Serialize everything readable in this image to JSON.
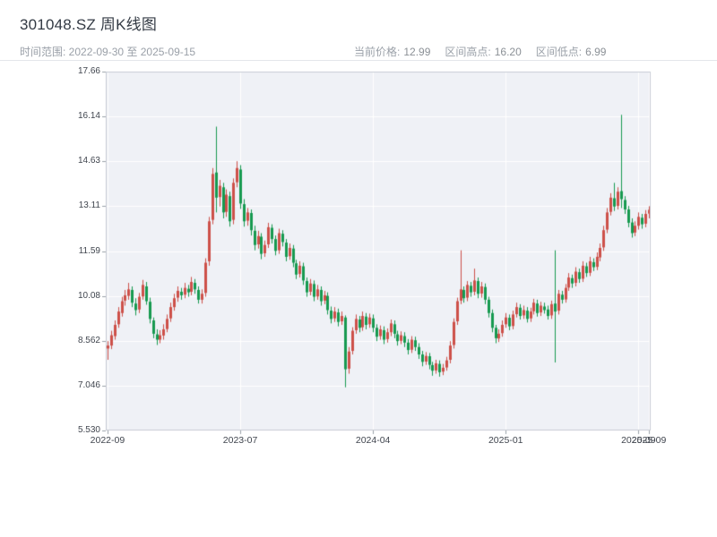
{
  "header": {
    "title": "301048.SZ 周K线图",
    "date_range_label": "时间范围: 2022-09-30 至 2025-09-15",
    "stats": {
      "current_label": "当前价格:",
      "current_value": "12.99",
      "high_label": "区间高点:",
      "high_value": "16.20",
      "low_label": "区间低点:",
      "low_value": "6.99"
    }
  },
  "chart_data": {
    "type": "candlestick",
    "title": "301048.SZ 周K线图",
    "timeframe": "weekly",
    "start_date": "2022-09-30",
    "end_date": "2025-09-15",
    "current_price": 12.99,
    "range_high": 16.2,
    "range_low": 6.99,
    "ylim": [
      5.53,
      17.66
    ],
    "y_ticks": [
      "17.66",
      "16.14",
      "14.63",
      "13.11",
      "11.59",
      "10.08",
      "8.562",
      "7.046",
      "5.530"
    ],
    "x_ticks": [
      {
        "label": "2022-09",
        "week": 0
      },
      {
        "label": "2023-07",
        "week": 38
      },
      {
        "label": "2024-04",
        "week": 76
      },
      {
        "label": "2025-01",
        "week": 114
      },
      {
        "label": "2025-09",
        "week": 152
      },
      {
        "label": "2025-09",
        "week": 155
      }
    ],
    "colors": {
      "up": "#cd5049",
      "down": "#169a50",
      "plot_bg": "#eff1f6",
      "grid": "#ffffff",
      "border": "#c7cbd4",
      "tick": "#9aa0a8"
    },
    "candles_ohlc": [
      [
        8.3,
        8.55,
        7.92,
        8.4
      ],
      [
        8.4,
        8.9,
        8.28,
        8.75
      ],
      [
        8.72,
        9.25,
        8.6,
        9.1
      ],
      [
        9.12,
        9.7,
        9.0,
        9.55
      ],
      [
        9.5,
        10.05,
        9.38,
        9.9
      ],
      [
        9.92,
        10.28,
        9.75,
        10.1
      ],
      [
        10.08,
        10.52,
        9.95,
        10.3
      ],
      [
        10.28,
        10.4,
        9.7,
        9.85
      ],
      [
        9.82,
        10.0,
        9.42,
        9.6
      ],
      [
        9.62,
        10.18,
        9.5,
        10.05
      ],
      [
        10.06,
        10.62,
        9.95,
        10.45
      ],
      [
        10.4,
        10.55,
        9.78,
        9.9
      ],
      [
        9.88,
        10.02,
        9.15,
        9.3
      ],
      [
        9.25,
        9.35,
        8.65,
        8.8
      ],
      [
        8.78,
        8.95,
        8.42,
        8.6
      ],
      [
        8.6,
        8.92,
        8.48,
        8.75
      ],
      [
        8.74,
        9.12,
        8.6,
        8.95
      ],
      [
        8.96,
        9.45,
        8.85,
        9.3
      ],
      [
        9.32,
        9.85,
        9.2,
        9.7
      ],
      [
        9.7,
        10.15,
        9.58,
        10.0
      ],
      [
        10.02,
        10.4,
        9.88,
        10.25
      ],
      [
        10.22,
        10.35,
        9.95,
        10.1
      ],
      [
        10.12,
        10.52,
        10.0,
        10.35
      ],
      [
        10.32,
        10.45,
        10.05,
        10.2
      ],
      [
        10.22,
        10.72,
        10.1,
        10.55
      ],
      [
        10.52,
        10.65,
        10.15,
        10.3
      ],
      [
        10.28,
        10.4,
        9.82,
        9.95
      ],
      [
        9.95,
        10.3,
        9.82,
        10.15
      ],
      [
        10.18,
        11.35,
        10.05,
        11.2
      ],
      [
        11.25,
        12.75,
        11.1,
        12.6
      ],
      [
        12.65,
        14.4,
        12.5,
        14.2
      ],
      [
        14.25,
        15.8,
        12.9,
        13.4
      ],
      [
        13.42,
        14.0,
        13.1,
        13.8
      ],
      [
        13.75,
        13.9,
        12.7,
        12.9
      ],
      [
        12.92,
        13.68,
        12.75,
        13.5
      ],
      [
        13.45,
        13.6,
        12.42,
        12.6
      ],
      [
        12.65,
        14.05,
        12.5,
        13.9
      ],
      [
        13.92,
        14.63,
        13.75,
        14.4
      ],
      [
        14.35,
        14.5,
        13.02,
        13.2
      ],
      [
        13.18,
        13.35,
        12.42,
        12.6
      ],
      [
        12.62,
        13.05,
        12.45,
        12.9
      ],
      [
        12.88,
        13.0,
        12.12,
        12.3
      ],
      [
        12.28,
        12.45,
        11.62,
        11.8
      ],
      [
        11.82,
        12.28,
        11.68,
        12.1
      ],
      [
        12.08,
        12.2,
        11.32,
        11.5
      ],
      [
        11.52,
        11.95,
        11.4,
        11.8
      ],
      [
        11.82,
        12.55,
        11.7,
        12.4
      ],
      [
        12.38,
        12.5,
        11.85,
        12.0
      ],
      [
        12.0,
        12.12,
        11.45,
        11.6
      ],
      [
        11.62,
        12.35,
        11.5,
        12.2
      ],
      [
        12.18,
        12.3,
        11.75,
        11.9
      ],
      [
        11.88,
        12.0,
        11.25,
        11.4
      ],
      [
        11.42,
        11.85,
        11.3,
        11.7
      ],
      [
        11.68,
        11.8,
        11.05,
        11.2
      ],
      [
        11.18,
        11.3,
        10.65,
        10.8
      ],
      [
        10.82,
        11.25,
        10.7,
        11.1
      ],
      [
        11.08,
        11.2,
        10.45,
        10.6
      ],
      [
        10.58,
        10.7,
        10.05,
        10.2
      ],
      [
        10.22,
        10.65,
        10.1,
        10.5
      ],
      [
        10.48,
        10.6,
        9.9,
        10.05
      ],
      [
        10.06,
        10.45,
        9.95,
        10.3
      ],
      [
        10.28,
        10.4,
        9.75,
        9.9
      ],
      [
        9.92,
        10.25,
        9.8,
        10.1
      ],
      [
        10.08,
        10.2,
        9.45,
        9.6
      ],
      [
        9.58,
        9.72,
        9.15,
        9.3
      ],
      [
        9.32,
        9.7,
        9.2,
        9.55
      ],
      [
        9.52,
        9.65,
        9.05,
        9.2
      ],
      [
        9.22,
        9.55,
        9.1,
        9.4
      ],
      [
        9.35,
        9.42,
        6.99,
        7.6
      ],
      [
        7.62,
        8.35,
        7.45,
        8.2
      ],
      [
        8.22,
        9.02,
        8.1,
        8.9
      ],
      [
        8.92,
        9.45,
        8.8,
        9.3
      ],
      [
        9.28,
        9.4,
        8.85,
        9.0
      ],
      [
        9.02,
        9.55,
        8.9,
        9.4
      ],
      [
        9.38,
        9.5,
        8.95,
        9.1
      ],
      [
        9.12,
        9.48,
        9.0,
        9.35
      ],
      [
        9.32,
        9.45,
        8.85,
        9.0
      ],
      [
        9.0,
        9.12,
        8.55,
        8.7
      ],
      [
        8.72,
        9.08,
        8.6,
        8.95
      ],
      [
        8.92,
        9.05,
        8.45,
        8.6
      ],
      [
        8.62,
        8.98,
        8.5,
        8.85
      ],
      [
        8.85,
        9.28,
        8.72,
        9.15
      ],
      [
        9.12,
        9.25,
        8.65,
        8.8
      ],
      [
        8.78,
        8.9,
        8.4,
        8.55
      ],
      [
        8.56,
        8.88,
        8.45,
        8.75
      ],
      [
        8.72,
        8.85,
        8.35,
        8.5
      ],
      [
        8.5,
        8.62,
        8.1,
        8.25
      ],
      [
        8.26,
        8.72,
        8.15,
        8.6
      ],
      [
        8.58,
        8.7,
        8.22,
        8.35
      ],
      [
        8.35,
        8.48,
        7.95,
        8.1
      ],
      [
        8.1,
        8.22,
        7.7,
        7.85
      ],
      [
        7.86,
        8.18,
        7.75,
        8.05
      ],
      [
        8.04,
        8.15,
        7.6,
        7.75
      ],
      [
        7.74,
        7.85,
        7.38,
        7.55
      ],
      [
        7.56,
        7.92,
        7.45,
        7.8
      ],
      [
        7.78,
        7.9,
        7.35,
        7.5
      ],
      [
        7.52,
        7.78,
        7.4,
        7.65
      ],
      [
        7.66,
        8.02,
        7.55,
        7.9
      ],
      [
        7.92,
        8.55,
        7.8,
        8.4
      ],
      [
        8.42,
        9.32,
        8.3,
        9.2
      ],
      [
        9.22,
        10.02,
        9.1,
        9.9
      ],
      [
        9.92,
        11.62,
        9.8,
        10.3
      ],
      [
        10.28,
        10.4,
        9.85,
        10.0
      ],
      [
        10.02,
        10.58,
        9.9,
        10.45
      ],
      [
        10.42,
        10.55,
        10.05,
        10.2
      ],
      [
        10.22,
        11.0,
        10.1,
        10.6
      ],
      [
        10.58,
        10.7,
        10.0,
        10.15
      ],
      [
        10.16,
        10.55,
        10.02,
        10.4
      ],
      [
        10.38,
        10.5,
        9.8,
        9.95
      ],
      [
        9.95,
        10.05,
        9.35,
        9.5
      ],
      [
        9.5,
        9.62,
        8.85,
        9.0
      ],
      [
        9.0,
        9.1,
        8.48,
        8.65
      ],
      [
        8.64,
        8.95,
        8.52,
        8.8
      ],
      [
        8.82,
        9.25,
        8.7,
        9.1
      ],
      [
        9.12,
        9.5,
        9.0,
        9.35
      ],
      [
        9.34,
        9.45,
        8.92,
        9.05
      ],
      [
        9.06,
        9.58,
        8.95,
        9.45
      ],
      [
        9.46,
        9.85,
        9.35,
        9.7
      ],
      [
        9.68,
        9.8,
        9.28,
        9.4
      ],
      [
        9.42,
        9.75,
        9.3,
        9.6
      ],
      [
        9.58,
        9.7,
        9.18,
        9.3
      ],
      [
        9.32,
        9.68,
        9.2,
        9.55
      ],
      [
        9.56,
        9.98,
        9.45,
        9.85
      ],
      [
        9.82,
        9.95,
        9.38,
        9.5
      ],
      [
        9.52,
        9.88,
        9.4,
        9.75
      ],
      [
        9.72,
        9.85,
        9.48,
        9.6
      ],
      [
        9.62,
        9.75,
        9.28,
        9.4
      ],
      [
        9.42,
        9.92,
        9.3,
        9.8
      ],
      [
        9.82,
        11.62,
        7.83,
        9.55
      ],
      [
        9.58,
        10.28,
        9.45,
        10.15
      ],
      [
        10.12,
        10.25,
        9.82,
        9.95
      ],
      [
        9.96,
        10.48,
        9.85,
        10.35
      ],
      [
        10.36,
        10.85,
        10.25,
        10.7
      ],
      [
        10.68,
        10.8,
        10.35,
        10.5
      ],
      [
        10.52,
        11.05,
        10.4,
        10.9
      ],
      [
        10.88,
        11.0,
        10.52,
        10.65
      ],
      [
        10.66,
        11.25,
        10.55,
        11.1
      ],
      [
        11.08,
        11.2,
        10.72,
        10.85
      ],
      [
        10.86,
        11.4,
        10.75,
        11.25
      ],
      [
        11.22,
        11.35,
        10.92,
        11.05
      ],
      [
        11.06,
        11.55,
        10.95,
        11.4
      ],
      [
        11.38,
        11.85,
        11.25,
        11.7
      ],
      [
        11.72,
        12.45,
        11.6,
        12.3
      ],
      [
        12.32,
        13.05,
        12.2,
        12.9
      ],
      [
        12.92,
        13.55,
        12.8,
        13.4
      ],
      [
        13.38,
        13.9,
        12.95,
        13.1
      ],
      [
        13.12,
        13.75,
        13.0,
        13.6
      ],
      [
        13.62,
        16.2,
        13.05,
        13.35
      ],
      [
        13.32,
        13.45,
        12.85,
        13.0
      ],
      [
        13.0,
        13.12,
        12.4,
        12.55
      ],
      [
        12.56,
        12.7,
        12.05,
        12.2
      ],
      [
        12.22,
        12.6,
        12.1,
        12.45
      ],
      [
        12.45,
        12.9,
        12.32,
        12.75
      ],
      [
        12.72,
        12.85,
        12.35,
        12.5
      ],
      [
        12.52,
        12.98,
        12.4,
        12.85
      ],
      [
        12.86,
        13.11,
        12.7,
        12.99
      ]
    ]
  }
}
